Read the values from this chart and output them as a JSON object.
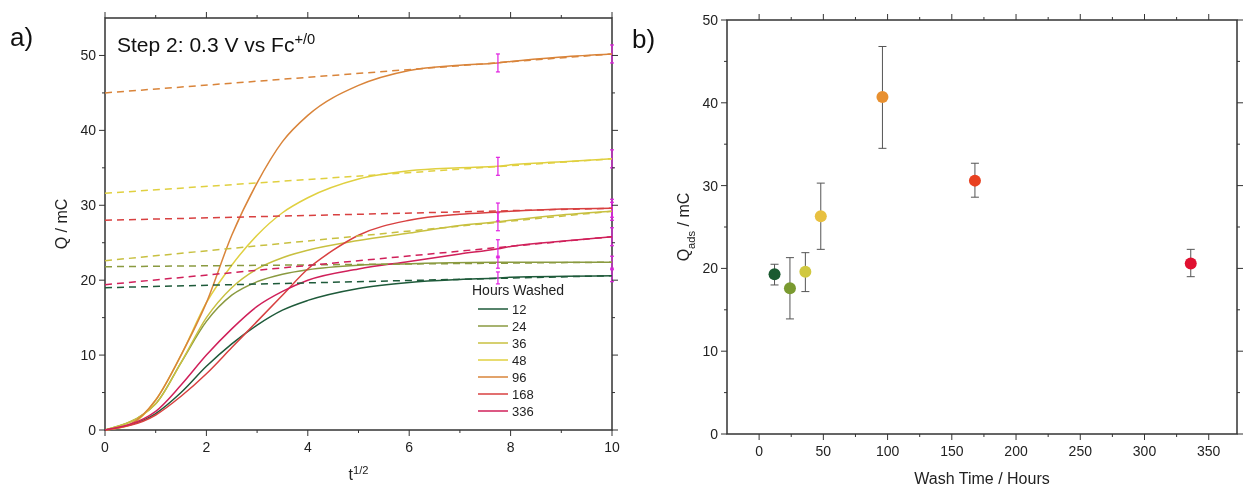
{
  "chart_data": [
    {
      "type": "line",
      "xlabel": "t$^{1/2}$",
      "ylabel": "Q / mC",
      "legend_title": "Hours Washed",
      "legend": "bottom right",
      "xlim": [
        0,
        10
      ],
      "ylim": [
        0,
        55
      ],
      "xticks": [
        0,
        2,
        4,
        6,
        8,
        10
      ],
      "yticks": [
        0,
        10,
        20,
        30,
        40,
        50
      ],
      "annotations": [
        "a)",
        "Step 2: 0.3 V vs Fc$^{+/0}$"
      ],
      "series": [
        {
          "name": "12",
          "color": "#1e5a3a",
          "x": [
            0,
            1,
            1.5,
            2,
            2.5,
            3,
            3.5,
            4,
            5,
            6,
            7,
            7.75,
            8,
            10
          ],
          "values": [
            0,
            2.2,
            5,
            8.5,
            11.5,
            14,
            16,
            17.3,
            18.9,
            19.7,
            20.1,
            20.3,
            20.4,
            20.6
          ],
          "errors": [
            null,
            null,
            null,
            null,
            null,
            null,
            null,
            null,
            null,
            null,
            null,
            0.8,
            null,
            0.8
          ]
        },
        {
          "name": "24",
          "color": "#8a9a40",
          "x": [
            0,
            1,
            1.5,
            2,
            2.5,
            3,
            3.5,
            4,
            5,
            6,
            7.75,
            8,
            10
          ],
          "values": [
            0,
            3.5,
            9,
            14.5,
            18,
            19.8,
            20.8,
            21.4,
            22,
            22.2,
            22.4,
            22.4,
            22.4
          ],
          "errors": [
            null,
            null,
            null,
            null,
            null,
            null,
            null,
            null,
            null,
            null,
            0.8,
            null,
            0.8
          ]
        },
        {
          "name": "36",
          "color": "#c8c040",
          "x": [
            0,
            1,
            1.5,
            2,
            2.5,
            3,
            3.5,
            4,
            5,
            6,
            7,
            7.75,
            8,
            9,
            10
          ],
          "values": [
            0,
            3.5,
            9,
            15,
            19,
            21.5,
            23,
            24,
            25.3,
            26.3,
            27.3,
            27.8,
            28,
            28.7,
            29.2
          ],
          "errors": [
            null,
            null,
            null,
            null,
            null,
            null,
            null,
            null,
            null,
            null,
            null,
            1.2,
            null,
            null,
            1.2
          ]
        },
        {
          "name": "48",
          "color": "#e0d040",
          "x": [
            0,
            0.5,
            1,
            1.5,
            2,
            2.5,
            3,
            3.5,
            4,
            5,
            6,
            7,
            7.75,
            8,
            9,
            10
          ],
          "values": [
            0,
            0.7,
            4,
            10,
            17,
            22,
            26,
            29,
            31,
            33.5,
            34.6,
            35,
            35.2,
            35.4,
            35.8,
            36.2
          ],
          "errors": [
            null,
            null,
            null,
            null,
            null,
            null,
            null,
            null,
            null,
            null,
            null,
            null,
            1.2,
            null,
            null,
            1.2
          ]
        },
        {
          "name": "96",
          "color": "#d9843a",
          "x": [
            0,
            0.5,
            1,
            1.5,
            2,
            2.5,
            3,
            3.5,
            4,
            5,
            6,
            7,
            7.75,
            8,
            9,
            10
          ],
          "values": [
            0,
            0.8,
            4,
            10,
            17,
            26,
            33,
            38.5,
            42,
            46,
            48,
            48.7,
            49,
            49.2,
            49.8,
            50.2
          ],
          "errors": [
            null,
            null,
            null,
            null,
            null,
            null,
            null,
            null,
            null,
            null,
            null,
            null,
            1.2,
            null,
            null,
            1.2
          ]
        },
        {
          "name": "168",
          "color": "#d84040",
          "x": [
            0,
            1,
            1.5,
            2,
            2.5,
            3,
            3.5,
            4,
            4.5,
            5,
            6,
            7,
            7.75,
            8,
            9,
            10
          ],
          "values": [
            0,
            2,
            4.5,
            7.5,
            11,
            14.5,
            18,
            21.5,
            24,
            26,
            28,
            28.8,
            29.1,
            29.2,
            29.5,
            29.6
          ],
          "errors": [
            null,
            null,
            null,
            null,
            null,
            null,
            null,
            null,
            null,
            null,
            null,
            null,
            1.2,
            null,
            null,
            1.2
          ]
        },
        {
          "name": "336",
          "color": "#d0205a",
          "x": [
            0,
            1,
            1.5,
            2,
            2.5,
            3,
            3.5,
            4,
            5,
            6,
            7,
            7.75,
            8,
            9,
            10
          ],
          "values": [
            0,
            2.5,
            6,
            10,
            13.5,
            16.5,
            18.5,
            20,
            21.5,
            22.5,
            23.5,
            24.2,
            24.5,
            25.2,
            25.8
          ],
          "errors": [
            null,
            null,
            null,
            null,
            null,
            null,
            null,
            null,
            null,
            null,
            null,
            1.2,
            null,
            null,
            1.2
          ]
        },
        {
          "color": "#1e5a3a",
          "line_style": "dashed",
          "x": [
            0,
            10
          ],
          "values": [
            19,
            20.6
          ]
        },
        {
          "color": "#8a9a40",
          "line_style": "dashed",
          "x": [
            0,
            10
          ],
          "values": [
            21.8,
            22.4
          ]
        },
        {
          "color": "#c8c040",
          "line_style": "dashed",
          "x": [
            0,
            10
          ],
          "values": [
            22.6,
            29.2
          ]
        },
        {
          "color": "#e0d040",
          "line_style": "dashed",
          "x": [
            0,
            10
          ],
          "values": [
            31.6,
            36.2
          ]
        },
        {
          "color": "#d9843a",
          "line_style": "dashed",
          "x": [
            0,
            10
          ],
          "values": [
            45,
            50.2
          ]
        },
        {
          "color": "#d84040",
          "line_style": "dashed",
          "x": [
            0,
            10
          ],
          "values": [
            28,
            29.6
          ]
        },
        {
          "color": "#d0205a",
          "line_style": "dashed",
          "x": [
            0,
            10
          ],
          "values": [
            19.4,
            25.8
          ]
        }
      ]
    },
    {
      "type": "scatter",
      "xlabel": "Wash Time / Hours",
      "ylabel": "Q$_{ads}$ / mC",
      "xlim": [
        -25,
        372
      ],
      "ylim": [
        0,
        50
      ],
      "xticks": [
        0,
        50,
        100,
        150,
        200,
        250,
        300,
        350
      ],
      "yticks": [
        0,
        10,
        20,
        30,
        40,
        50
      ],
      "marker": "circle",
      "annotations": [
        "b)"
      ],
      "series": [
        {
          "x": [
            12,
            24,
            36,
            48,
            96,
            168,
            336
          ],
          "values": [
            19.3,
            17.6,
            19.6,
            26.3,
            40.7,
            30.6,
            20.6
          ],
          "colors": [
            "#1a5a30",
            "#7a9a30",
            "#d0c840",
            "#e8c040",
            "#e89030",
            "#e84020",
            "#e01030"
          ],
          "errors": [
            [
              18,
              20.5
            ],
            [
              13.9,
              21.3
            ],
            [
              17.2,
              21.9
            ],
            [
              22.3,
              30.3
            ],
            [
              34.5,
              46.8
            ],
            [
              28.6,
              32.7
            ],
            [
              19,
              22.3
            ]
          ]
        }
      ]
    }
  ]
}
